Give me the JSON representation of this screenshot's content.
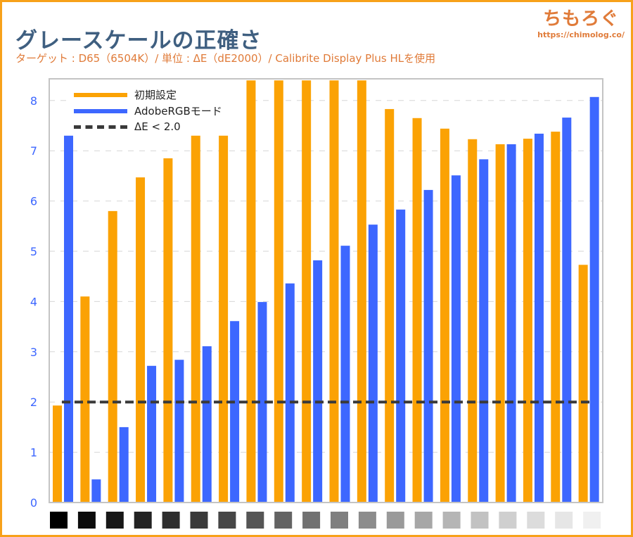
{
  "title": "グレースケールの正確さ",
  "subtitle": "ターゲット : D65（6504K）/ 単位 : ΔE（dE2000）/ Calibrite Display Plus HLを使用",
  "logo": {
    "text": "ちもろぐ",
    "url": "https://chimolog.co/"
  },
  "chart_data": {
    "type": "bar",
    "title": "グレースケールの正確さ",
    "xlabel": "",
    "ylabel": "",
    "ylim": [
      0,
      8.4
    ],
    "yticks": [
      "0",
      "1",
      "2",
      "3",
      "4",
      "5",
      "6",
      "7",
      "8"
    ],
    "grid": true,
    "legend_position": "top-left",
    "categories_are_gray_swatches": [
      "#000000",
      "#0c0c0c",
      "#171717",
      "#232323",
      "#2e2e2e",
      "#3a3a3a",
      "#464646",
      "#555555",
      "#636363",
      "#717171",
      "#7f7f7f",
      "#8c8c8c",
      "#9a9a9a",
      "#a7a7a7",
      "#b5b5b5",
      "#c2c2c2",
      "#cfcfcf",
      "#dcdcdc",
      "#e6e6e6",
      "#f0f0f0"
    ],
    "series": [
      {
        "name": "初期設定",
        "color": "#fba204",
        "values": [
          1.93,
          4.1,
          5.8,
          6.47,
          6.85,
          7.3,
          7.3,
          8.4,
          8.4,
          8.4,
          8.4,
          8.4,
          7.83,
          7.65,
          7.44,
          7.23,
          7.13,
          7.24,
          7.38,
          4.73
        ]
      },
      {
        "name": "AdobeRGBモード",
        "color": "#3d67ff",
        "values": [
          7.3,
          0.46,
          1.5,
          2.72,
          2.84,
          3.11,
          3.61,
          3.99,
          4.36,
          4.82,
          5.11,
          5.53,
          5.83,
          6.22,
          6.51,
          6.83,
          7.13,
          7.34,
          7.66,
          8.07
        ]
      }
    ],
    "reference_line": {
      "name": "ΔE < 2.0",
      "value": 2.0,
      "color": "#3a3a3a"
    }
  }
}
